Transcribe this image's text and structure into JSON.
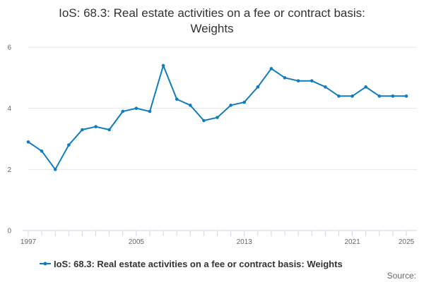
{
  "chart_data": {
    "type": "line",
    "title_lines": [
      "IoS: 68.3: Real estate activities on a fee or contract basis:",
      "Weights"
    ],
    "xlabel": "",
    "ylabel": "",
    "x": [
      1997,
      1998,
      1999,
      2000,
      2001,
      2002,
      2003,
      2004,
      2005,
      2006,
      2007,
      2008,
      2009,
      2010,
      2011,
      2012,
      2013,
      2014,
      2015,
      2016,
      2017,
      2018,
      2019,
      2020,
      2021,
      2022,
      2023,
      2024,
      2025
    ],
    "xlim": [
      1997,
      2025
    ],
    "x_ticks": [
      1997,
      2005,
      2013,
      2021,
      2025
    ],
    "ylim": [
      0,
      6
    ],
    "y_ticks": [
      0,
      2,
      4,
      6
    ],
    "grid": true,
    "legend_position": "bottom",
    "series": [
      {
        "name": "IoS: 68.3: Real estate activities on a fee or contract basis: Weights",
        "color": "#0f7dbb",
        "values": [
          2.9,
          2.6,
          2.0,
          2.8,
          3.3,
          3.4,
          3.3,
          3.9,
          4.0,
          3.9,
          5.4,
          4.3,
          4.1,
          3.6,
          3.7,
          4.1,
          4.2,
          4.7,
          5.3,
          5.0,
          4.9,
          4.9,
          4.7,
          4.4,
          4.4,
          4.7,
          4.4,
          4.4,
          4.4
        ]
      }
    ],
    "source_label": "Source:"
  }
}
